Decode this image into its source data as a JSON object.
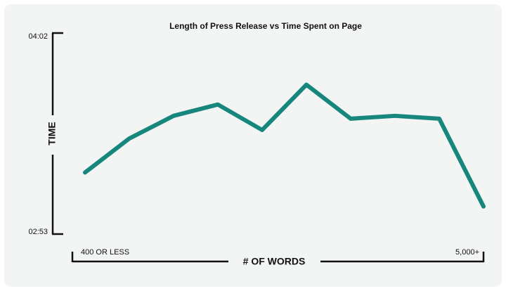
{
  "chart_data": {
    "type": "line",
    "title": "Length of Press Release vs Time Spent on Page",
    "y_label": "TIME",
    "x_label": "# OF WORDS",
    "categories": [
      "400 OR LESS",
      null,
      null,
      null,
      null,
      null,
      null,
      null,
      null,
      "5,000+"
    ],
    "values": [
      194,
      206,
      214,
      218,
      209,
      225,
      213,
      214,
      213,
      182
    ],
    "color": "#17877d",
    "ylim": [
      173,
      242
    ],
    "yticks": [
      {
        "value": 173,
        "label": "02:53"
      },
      {
        "value": 242,
        "label": "04:02"
      }
    ],
    "grid": false
  }
}
